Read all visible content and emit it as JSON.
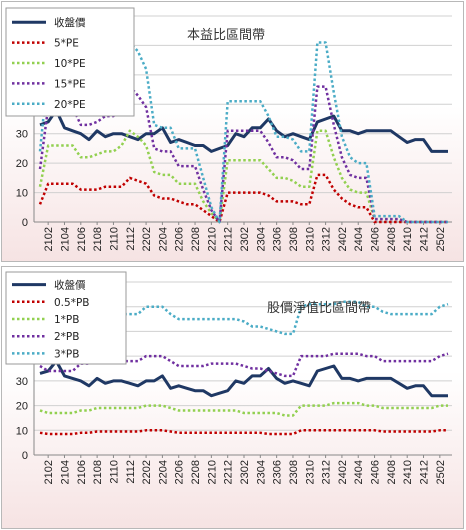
{
  "chart_data": [
    {
      "type": "line",
      "title": "本益比區間帶",
      "ylim": [
        0,
        70
      ],
      "yticks": [
        0,
        10,
        20,
        30,
        40,
        50,
        60,
        70
      ],
      "grid": true,
      "legend_position": "top-left",
      "x_tick_labels": [
        "2102",
        "2104",
        "2106",
        "2108",
        "2110",
        "2112",
        "2202",
        "2204",
        "2206",
        "2208",
        "2210",
        "2212",
        "2302",
        "2304",
        "2306",
        "2308",
        "2310",
        "2312",
        "2402",
        "2404",
        "2406",
        "2408",
        "2410",
        "2412",
        "2502"
      ],
      "x": [
        "2101",
        "2102",
        "2103",
        "2104",
        "2105",
        "2106",
        "2107",
        "2108",
        "2109",
        "2110",
        "2111",
        "2112",
        "2201",
        "2202",
        "2203",
        "2204",
        "2205",
        "2206",
        "2207",
        "2208",
        "2209",
        "2210",
        "2211",
        "2212",
        "2301",
        "2302",
        "2303",
        "2304",
        "2305",
        "2306",
        "2307",
        "2308",
        "2309",
        "2310",
        "2311",
        "2312",
        "2401",
        "2402",
        "2403",
        "2404",
        "2405",
        "2406",
        "2407",
        "2408",
        "2409",
        "2410",
        "2411",
        "2412",
        "2501",
        "2502",
        "2503"
      ],
      "series": [
        {
          "name": "收盤價",
          "color": "#1f3864",
          "style": "solid",
          "values": [
            33,
            34,
            38,
            32,
            31,
            30,
            28,
            31,
            29,
            30,
            30,
            29,
            28,
            30,
            30,
            32,
            27,
            28,
            27,
            26,
            26,
            24,
            25,
            26,
            30,
            29,
            32,
            32,
            35,
            31,
            29,
            30,
            29,
            28,
            34,
            35,
            36,
            31,
            31,
            30,
            31,
            31,
            31,
            31,
            29,
            27,
            28,
            28,
            24,
            24,
            24
          ]
        },
        {
          "name": "5*PE",
          "color": "#c00000",
          "style": "dotted",
          "values": [
            6,
            13,
            13,
            13,
            13,
            11,
            11,
            11,
            12,
            12,
            12,
            15,
            14,
            13,
            9,
            8,
            8,
            7,
            6,
            6,
            4,
            2,
            0,
            10,
            10,
            10,
            10,
            10,
            9,
            7,
            7,
            7,
            6,
            6,
            16,
            16,
            11,
            8,
            6,
            5,
            5,
            0,
            0,
            0,
            0,
            0,
            0,
            0,
            0,
            0,
            0
          ]
        },
        {
          "name": "10*PE",
          "color": "#92d050",
          "style": "dotted",
          "values": [
            12,
            26,
            26,
            26,
            26,
            22,
            22,
            23,
            24,
            24,
            26,
            31,
            29,
            26,
            17,
            16,
            16,
            13,
            13,
            13,
            7,
            3,
            0,
            21,
            21,
            21,
            21,
            21,
            18,
            15,
            15,
            14,
            12,
            12,
            31,
            31,
            22,
            15,
            11,
            10,
            10,
            1,
            1,
            1,
            1,
            0,
            0,
            0,
            0,
            0,
            0
          ]
        },
        {
          "name": "15*PE",
          "color": "#7030a0",
          "style": "dotted",
          "values": [
            18,
            39,
            39,
            39,
            39,
            33,
            33,
            34,
            36,
            36,
            39,
            46,
            43,
            39,
            25,
            24,
            24,
            19,
            19,
            19,
            11,
            4,
            0,
            31,
            31,
            31,
            31,
            31,
            27,
            22,
            22,
            21,
            18,
            18,
            46,
            46,
            33,
            22,
            16,
            15,
            15,
            1,
            1,
            1,
            1,
            0,
            0,
            0,
            0,
            0,
            0
          ]
        },
        {
          "name": "20*PE",
          "color": "#4bacc6",
          "style": "dotted",
          "values": [
            24,
            52,
            52,
            52,
            52,
            44,
            44,
            45,
            48,
            48,
            52,
            61,
            58,
            52,
            33,
            32,
            32,
            25,
            25,
            25,
            15,
            5,
            0,
            41,
            41,
            41,
            41,
            41,
            36,
            29,
            29,
            28,
            24,
            24,
            61,
            61,
            44,
            29,
            22,
            20,
            20,
            2,
            2,
            2,
            2,
            0,
            0,
            0,
            0,
            0,
            0
          ]
        }
      ]
    },
    {
      "type": "line",
      "title": "股價淨值比區間帶",
      "ylim": [
        0,
        70
      ],
      "yticks": [
        0,
        10,
        20,
        30,
        40,
        50,
        60,
        70
      ],
      "grid": true,
      "legend_position": "top-left",
      "x_tick_labels": [
        "2102",
        "2104",
        "2106",
        "2108",
        "2110",
        "2112",
        "2202",
        "2204",
        "2206",
        "2208",
        "2210",
        "2212",
        "2302",
        "2304",
        "2306",
        "2308",
        "2310",
        "2312",
        "2402",
        "2404",
        "2406",
        "2408",
        "2410",
        "2412",
        "2502"
      ],
      "x": [
        "2101",
        "2102",
        "2103",
        "2104",
        "2105",
        "2106",
        "2107",
        "2108",
        "2109",
        "2110",
        "2111",
        "2112",
        "2201",
        "2202",
        "2203",
        "2204",
        "2205",
        "2206",
        "2207",
        "2208",
        "2209",
        "2210",
        "2211",
        "2212",
        "2301",
        "2302",
        "2303",
        "2304",
        "2305",
        "2306",
        "2307",
        "2308",
        "2309",
        "2310",
        "2311",
        "2312",
        "2401",
        "2402",
        "2403",
        "2404",
        "2405",
        "2406",
        "2407",
        "2408",
        "2409",
        "2410",
        "2411",
        "2412",
        "2501",
        "2502",
        "2503"
      ],
      "series": [
        {
          "name": "收盤價",
          "color": "#1f3864",
          "style": "solid",
          "values": [
            33,
            34,
            38,
            32,
            31,
            30,
            28,
            31,
            29,
            30,
            30,
            29,
            28,
            30,
            30,
            32,
            27,
            28,
            27,
            26,
            26,
            24,
            25,
            26,
            30,
            29,
            32,
            32,
            35,
            31,
            29,
            30,
            29,
            28,
            34,
            35,
            36,
            31,
            31,
            30,
            31,
            31,
            31,
            31,
            29,
            27,
            28,
            28,
            24,
            24,
            24
          ]
        },
        {
          "name": "0.5*PB",
          "color": "#c00000",
          "style": "dotted",
          "values": [
            9,
            8.5,
            8.5,
            8.5,
            8.5,
            9,
            9,
            9.5,
            9.5,
            9.5,
            9.5,
            9.5,
            9.5,
            10,
            10,
            10,
            9.5,
            9,
            9,
            9,
            9,
            9,
            9,
            9,
            9,
            9,
            9,
            9,
            8.5,
            8.5,
            8.5,
            8.5,
            10,
            10,
            10,
            10,
            10,
            10,
            10,
            10,
            10,
            10,
            9.5,
            9.5,
            9.5,
            9.5,
            9.5,
            9.5,
            9.5,
            10,
            10
          ]
        },
        {
          "name": "1*PB",
          "color": "#92d050",
          "style": "dotted",
          "values": [
            18,
            17,
            17,
            17,
            17,
            18,
            18,
            19,
            19,
            19,
            19,
            19,
            19,
            20,
            20,
            20,
            19,
            18,
            18,
            18,
            18,
            18,
            18,
            18,
            18,
            17,
            17,
            17,
            17,
            17,
            16,
            16,
            20,
            20,
            20,
            20,
            21,
            21,
            21,
            21,
            20,
            20,
            19,
            19,
            19,
            19,
            19,
            19,
            19,
            20,
            20
          ]
        },
        {
          "name": "2*PB",
          "color": "#7030a0",
          "style": "dotted",
          "values": [
            36,
            34,
            34,
            34,
            34,
            37,
            37,
            38,
            38,
            38,
            38,
            38,
            38,
            40,
            40,
            40,
            38,
            36,
            36,
            36,
            36,
            37,
            37,
            37,
            37,
            36,
            35,
            35,
            34,
            33,
            32,
            32,
            40,
            40,
            40,
            40,
            41,
            41,
            41,
            41,
            40,
            40,
            38,
            38,
            38,
            38,
            38,
            38,
            38,
            40,
            41
          ]
        },
        {
          "name": "3*PB",
          "color": "#4bacc6",
          "style": "dotted",
          "values": [
            54,
            52,
            52,
            52,
            52,
            55,
            55,
            57,
            57,
            57,
            57,
            57,
            57,
            60,
            60,
            60,
            57,
            55,
            55,
            55,
            55,
            55,
            55,
            55,
            55,
            54,
            52,
            52,
            51,
            50,
            49,
            49,
            60,
            61,
            61,
            61,
            61,
            62,
            62,
            62,
            60,
            60,
            58,
            57,
            57,
            57,
            57,
            57,
            57,
            60,
            61
          ]
        }
      ]
    }
  ]
}
